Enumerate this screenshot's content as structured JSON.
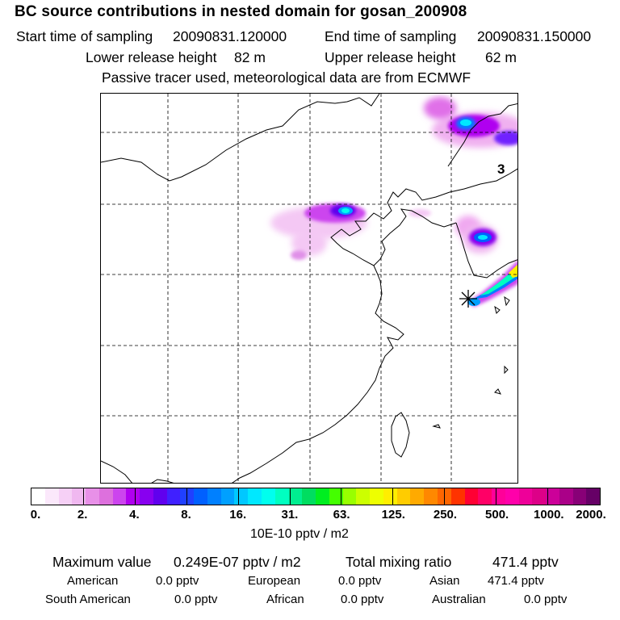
{
  "header": {
    "title": "BC  source contributions in nested domain for gosan_200908",
    "start_label": "Start time of sampling",
    "start_value": "20090831.120000",
    "end_label": "End time of sampling",
    "end_value": "20090831.150000",
    "lower_label": "Lower release height",
    "lower_value": "82 m",
    "upper_label": "Upper release height",
    "upper_value": "62 m",
    "note": "Passive tracer used, meteorological data are from ECMWF"
  },
  "map": {
    "region_label": "3",
    "receptor_marker": "asterisk-star-icon"
  },
  "colorbar": {
    "tick_labels": [
      "0.",
      "2.",
      "4.",
      "8.",
      "16.",
      "31.",
      "63.",
      "125.",
      "250.",
      "500.",
      "1000.",
      "2000."
    ],
    "unit": "10E-10 pptv / m2",
    "colors": [
      "#ffffff",
      "#fbe8fb",
      "#f6d0f6",
      "#f0b8f0",
      "#e890e8",
      "#dd70dd",
      "#cc44ee",
      "#b000f0",
      "#8800f0",
      "#6000ee",
      "#4020ff",
      "#2040ff",
      "#0060ff",
      "#0080ff",
      "#00a0ff",
      "#00c8ff",
      "#00e8ff",
      "#00ffee",
      "#00ffc0",
      "#00ee90",
      "#00dd60",
      "#00ee20",
      "#44ff00",
      "#99ff00",
      "#ccff00",
      "#eeff00",
      "#ffee00",
      "#ffcc00",
      "#ffaa00",
      "#ff8800",
      "#ff6600",
      "#ff3300",
      "#ff0033",
      "#ff0066",
      "#ff0099",
      "#ff00aa",
      "#ee0099",
      "#dd0088",
      "#cc0099",
      "#aa0088",
      "#880077",
      "#660066"
    ]
  },
  "summary": {
    "max_label": "Maximum value",
    "max_value": "0.249E-07 pptv / m2",
    "total_label": "Total mixing ratio",
    "total_value": "471.4 pptv",
    "regions": [
      {
        "name": "American",
        "value": "0.0 pptv"
      },
      {
        "name": "European",
        "value": "0.0 pptv"
      },
      {
        "name": "Asian",
        "value": "471.4 pptv"
      },
      {
        "name": "South American",
        "value": "0.0 pptv"
      },
      {
        "name": "African",
        "value": "0.0 pptv"
      },
      {
        "name": "Australian",
        "value": "0.0 pptv"
      }
    ]
  }
}
